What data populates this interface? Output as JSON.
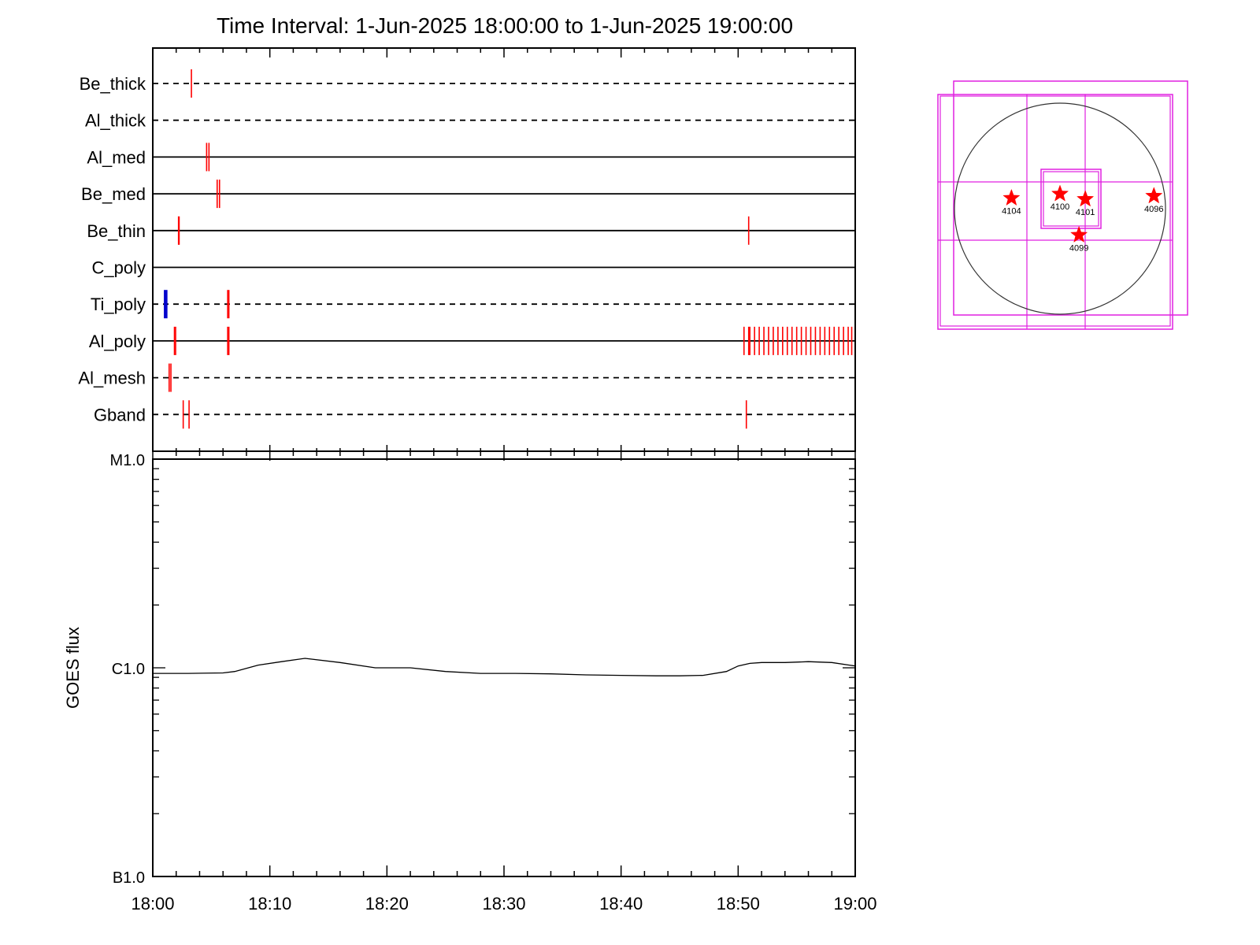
{
  "chart_data": [
    {
      "type": "timeline",
      "title": "Time Interval:  1-Jun-2025 18:00:00 to  1-Jun-2025 19:00:00",
      "x_range": [
        "18:00",
        "19:00"
      ],
      "rows": [
        {
          "name": "Be_thick",
          "line": "dashed",
          "events": [
            {
              "t": 3.3,
              "color": "#ff0000"
            }
          ]
        },
        {
          "name": "Al_thick",
          "line": "dashed",
          "events": []
        },
        {
          "name": "Al_med",
          "line": "solid",
          "events": [
            {
              "t": 4.6,
              "color": "#ff0000"
            },
            {
              "t": 4.8,
              "color": "#ff0000"
            }
          ]
        },
        {
          "name": "Be_med",
          "line": "solid",
          "events": [
            {
              "t": 5.5,
              "color": "#ff0000"
            },
            {
              "t": 5.7,
              "color": "#ff0000"
            }
          ]
        },
        {
          "name": "Be_thin",
          "line": "solid",
          "events": [
            {
              "t": 2.2,
              "color": "#ff0000"
            },
            {
              "t": 2.25,
              "color": "#ff0000"
            },
            {
              "t": 50.9,
              "color": "#ff0000"
            }
          ]
        },
        {
          "name": "C_poly",
          "line": "solid",
          "events": []
        },
        {
          "name": "Ti_poly",
          "line": "dashed",
          "events": [
            {
              "t": 1.0,
              "color": "#0000cc"
            },
            {
              "t": 1.1,
              "color": "#0000cc"
            },
            {
              "t": 1.2,
              "color": "#0000cc"
            },
            {
              "t": 6.4,
              "color": "#ff0000"
            },
            {
              "t": 6.5,
              "color": "#ff0000"
            }
          ]
        },
        {
          "name": "Al_poly",
          "line": "solid",
          "events": [
            {
              "t": 1.85,
              "color": "#ff0000"
            },
            {
              "t": 1.95,
              "color": "#ff0000"
            },
            {
              "t": 6.4,
              "color": "#ff0000"
            },
            {
              "t": 6.5,
              "color": "#ff0000"
            },
            {
              "t": 50.5,
              "color": "#ff0000"
            },
            {
              "t": 50.9,
              "color": "#ff0000"
            },
            {
              "t": 51.0,
              "color": "#ff0000"
            },
            {
              "t": 51.4,
              "color": "#ff0000"
            },
            {
              "t": 51.8,
              "color": "#ff0000"
            },
            {
              "t": 52.2,
              "color": "#ff0000"
            },
            {
              "t": 52.6,
              "color": "#ff0000"
            },
            {
              "t": 53.0,
              "color": "#ff0000"
            },
            {
              "t": 53.4,
              "color": "#ff0000"
            },
            {
              "t": 53.8,
              "color": "#ff0000"
            },
            {
              "t": 54.2,
              "color": "#ff0000"
            },
            {
              "t": 54.6,
              "color": "#ff0000"
            },
            {
              "t": 55.0,
              "color": "#ff0000"
            },
            {
              "t": 55.4,
              "color": "#ff0000"
            },
            {
              "t": 55.8,
              "color": "#ff0000"
            },
            {
              "t": 56.2,
              "color": "#ff0000"
            },
            {
              "t": 56.6,
              "color": "#ff0000"
            },
            {
              "t": 57.0,
              "color": "#ff0000"
            },
            {
              "t": 57.4,
              "color": "#ff0000"
            },
            {
              "t": 57.8,
              "color": "#ff0000"
            },
            {
              "t": 58.2,
              "color": "#ff0000"
            },
            {
              "t": 58.6,
              "color": "#ff0000"
            },
            {
              "t": 59.0,
              "color": "#ff0000"
            },
            {
              "t": 59.4,
              "color": "#ff0000"
            },
            {
              "t": 59.7,
              "color": "#ff0000"
            }
          ]
        },
        {
          "name": "Al_mesh",
          "line": "dashed",
          "events": [
            {
              "t": 1.4,
              "color": "#ff0000"
            },
            {
              "t": 1.55,
              "color": "#ff0000"
            }
          ]
        },
        {
          "name": "Gband",
          "line": "dashed",
          "events": [
            {
              "t": 2.6,
              "color": "#ff0000"
            },
            {
              "t": 3.1,
              "color": "#ff0000"
            },
            {
              "t": 50.7,
              "color": "#ff0000"
            }
          ]
        }
      ]
    },
    {
      "type": "line",
      "ylabel": "GOES flux",
      "yscale": "log",
      "y_tick_labels": [
        "M1.0",
        "C1.0",
        "B1.0"
      ],
      "ylim": [
        "B1.0",
        "M1.0"
      ],
      "ylim_watts": [
        1e-07,
        1e-05
      ],
      "x_ticks": [
        "18:00",
        "18:10",
        "18:20",
        "18:30",
        "18:40",
        "18:50",
        "19:00"
      ],
      "series": [
        {
          "x": [
            0,
            3,
            6,
            7,
            9,
            11,
            13,
            16,
            19,
            22,
            25,
            28,
            31,
            34,
            37,
            40,
            43,
            45,
            47,
            49,
            50,
            51,
            52,
            54,
            56,
            58,
            59.5,
            60
          ],
          "y": [
            9.4e-07,
            9.4e-07,
            9.45e-07,
            9.6e-07,
            1.03e-06,
            1.07e-06,
            1.11e-06,
            1.06e-06,
            1e-06,
            1e-06,
            9.6e-07,
            9.4e-07,
            9.4e-07,
            9.35e-07,
            9.25e-07,
            9.2e-07,
            9.15e-07,
            9.15e-07,
            9.2e-07,
            9.6e-07,
            1.02e-06,
            1.05e-06,
            1.06e-06,
            1.06e-06,
            1.07e-06,
            1.06e-06,
            1.03e-06,
            1.02e-06
          ]
        }
      ]
    },
    {
      "type": "scatter",
      "points": [
        {
          "label": "4104",
          "x": -0.46,
          "y": 0.1
        },
        {
          "label": "4100",
          "x": 0.0,
          "y": 0.14
        },
        {
          "label": "4101",
          "x": 0.24,
          "y": 0.09
        },
        {
          "label": "4099",
          "x": 0.18,
          "y": -0.25
        },
        {
          "label": "4096",
          "x": 0.89,
          "y": 0.12
        }
      ]
    }
  ]
}
